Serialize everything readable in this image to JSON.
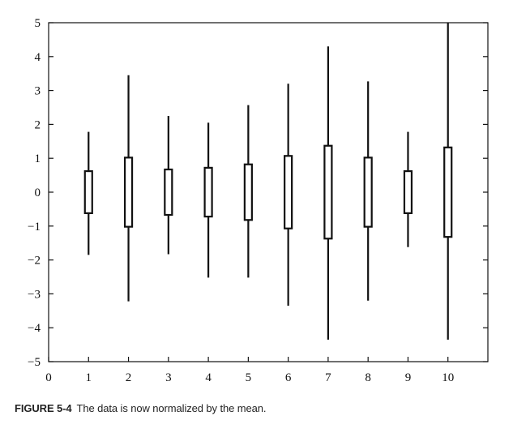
{
  "chart_data": {
    "type": "boxplot",
    "title": "",
    "xlabel": "",
    "ylabel": "",
    "xlim": [
      0,
      11
    ],
    "ylim": [
      -5,
      5
    ],
    "x_ticks": [
      0,
      1,
      2,
      3,
      4,
      5,
      6,
      7,
      8,
      9,
      10
    ],
    "y_ticks": [
      -5,
      -4,
      -3,
      -2,
      -1,
      0,
      1,
      2,
      3,
      4,
      5
    ],
    "x_tick_labels": [
      "0",
      "1",
      "2",
      "3",
      "4",
      "5",
      "6",
      "7",
      "8",
      "9",
      "10"
    ],
    "y_tick_labels": [
      "−5",
      "−4",
      "−3",
      "−2",
      "−1",
      "0",
      "1",
      "2",
      "3",
      "4",
      "5"
    ],
    "grid": false,
    "boxes": [
      {
        "x": 1,
        "whisker_low": -1.85,
        "q1": -0.62,
        "q3": 0.62,
        "whisker_high": 1.78
      },
      {
        "x": 2,
        "whisker_low": -3.22,
        "q1": -1.02,
        "q3": 1.02,
        "whisker_high": 3.45
      },
      {
        "x": 3,
        "whisker_low": -1.83,
        "q1": -0.67,
        "q3": 0.67,
        "whisker_high": 2.25
      },
      {
        "x": 4,
        "whisker_low": -2.52,
        "q1": -0.72,
        "q3": 0.72,
        "whisker_high": 2.05
      },
      {
        "x": 5,
        "whisker_low": -2.52,
        "q1": -0.82,
        "q3": 0.82,
        "whisker_high": 2.57
      },
      {
        "x": 6,
        "whisker_low": -3.35,
        "q1": -1.07,
        "q3": 1.07,
        "whisker_high": 3.2
      },
      {
        "x": 7,
        "whisker_low": -4.35,
        "q1": -1.37,
        "q3": 1.37,
        "whisker_high": 4.3
      },
      {
        "x": 8,
        "whisker_low": -3.2,
        "q1": -1.02,
        "q3": 1.02,
        "whisker_high": 3.27
      },
      {
        "x": 9,
        "whisker_low": -1.62,
        "q1": -0.62,
        "q3": 0.62,
        "whisker_high": 1.78
      },
      {
        "x": 10,
        "whisker_low": -4.35,
        "q1": -1.32,
        "q3": 1.32,
        "whisker_high": 5.0
      }
    ],
    "colors": {
      "line": "#111111",
      "background": "#ffffff"
    }
  },
  "caption": {
    "figure_label": "FIGURE 5-4",
    "text": "The data is now normalized by the mean."
  }
}
